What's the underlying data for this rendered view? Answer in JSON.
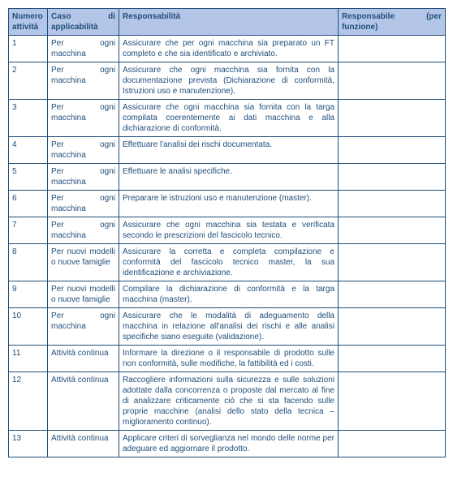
{
  "headers": {
    "col1": "Numero attività",
    "col2_line1_a": "Caso",
    "col2_line1_b": "di",
    "col2_line2": "applicabilità",
    "col3": "Responsabilità",
    "col4_line1_a": "Responsabile",
    "col4_line1_b": "(per",
    "col4_line2": "funzione)"
  },
  "rows": [
    {
      "num": "1",
      "caso": "Per ogni macchina",
      "resp": "Assicurare che per ogni macchina sia preparato un FT completo e che sia identificato e archiviato.",
      "respons": ""
    },
    {
      "num": "2",
      "caso": "Per ogni macchina",
      "resp": "Assicurare che ogni macchina sia fornita con la documentazione prevista (Dichiarazione di conformità, Istruzioni uso e manutenzione).",
      "respons": ""
    },
    {
      "num": "3",
      "caso": "Per ogni macchina",
      "resp": "Assicurare che ogni macchina sia fornita con la targa compilata coerentemente ai dati macchina e alla dichiarazione di conformità.",
      "respons": ""
    },
    {
      "num": "4",
      "caso": "Per ogni macchina",
      "resp": "Effettuare l'analisi dei rischi documentata.",
      "respons": ""
    },
    {
      "num": "5",
      "caso": "Per ogni macchina",
      "resp": "Effettuare le analisi specifiche.",
      "respons": ""
    },
    {
      "num": "6",
      "caso": "Per ogni macchina",
      "resp": "Preparare le istruzioni uso e manutenzione (master).",
      "respons": ""
    },
    {
      "num": "7",
      "caso": "Per ogni macchina",
      "resp": "Assicurare che ogni macchina sia testata e verificata secondo le prescrizioni del fascicolo tecnico.",
      "respons": ""
    },
    {
      "num": "8",
      "caso": "Per nuovi modelli o nuove famiglie",
      "resp": "Assicurare la corretta e completa compilazione e conformità del fascicolo tecnico master, la sua identificazione e archiviazione.",
      "respons": ""
    },
    {
      "num": "9",
      "caso": "Per nuovi modelli o nuove famiglie",
      "resp": "Compilare la dichiarazione di conformità e la targa macchina (master).",
      "respons": ""
    },
    {
      "num": "10",
      "caso": "Per ogni macchina",
      "resp": "Assicurare che le modalità di adeguamento della macchina in relazione all'analisi dei rischi e alle analisi specifiche siano eseguite (validazione).",
      "respons": ""
    },
    {
      "num": "11",
      "caso": "Attività continua",
      "resp": "Informare la direzione o il responsabile di prodotto sulle non conformità, sulle modifiche, la fattibilità ed i costi.",
      "respons": ""
    },
    {
      "num": "12",
      "caso": "Attività continua",
      "resp": "Raccogliere informazioni sulla sicurezza e sulle soluzioni adottate dalla concorrenza o proposte dal mercato al fine di analizzare criticamente ciò che si sta facendo sulle proprie macchine (analisi dello stato della tecnica – miglioramento continuo).",
      "respons": ""
    },
    {
      "num": "13",
      "caso": "Attività continua",
      "resp": "Applicare criteri di sorveglianza nel mondo delle norme per adeguare ed aggiornare il prodotto.",
      "respons": ""
    }
  ]
}
